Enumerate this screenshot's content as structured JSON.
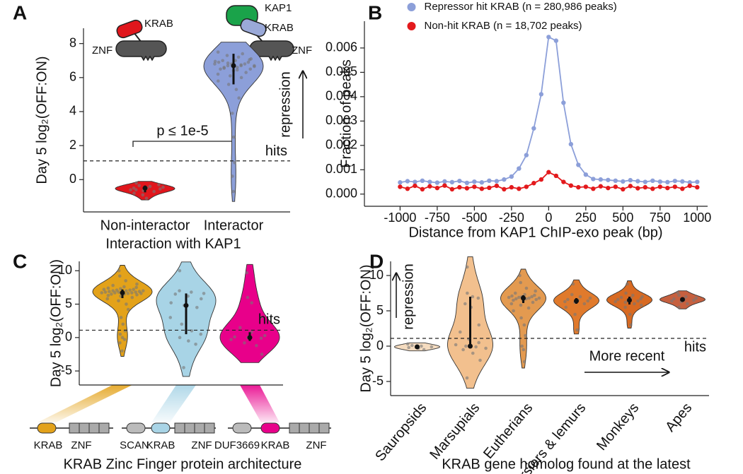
{
  "chart_data": [
    {
      "type": "violin",
      "panel": "A",
      "ylabel": "Day 5 log₂(OFF:ON)",
      "xlabel": "Interaction with KAP1",
      "categories": [
        "Non-interactor",
        "Interactor"
      ],
      "ylim": [
        -1.9,
        8.9
      ],
      "yticks": [
        0,
        2,
        4,
        6,
        8
      ],
      "threshold": 1.1,
      "threshold_label": "hits",
      "series": [
        {
          "color": "#e0161c",
          "median": -0.5,
          "q1": -0.75,
          "q3": -0.35,
          "points": [
            -0.2,
            -0.35,
            -0.4,
            -0.45,
            -0.5,
            -0.5,
            -0.55,
            -0.6,
            -0.65,
            -0.7,
            -0.8,
            -0.9,
            -1.1,
            -0.3,
            -0.6
          ]
        },
        {
          "color": "#8c9fd9",
          "median": 6.7,
          "q1": 5.6,
          "q3": 7.4,
          "points": [
            7.5,
            7.3,
            7.2,
            7.1,
            7.0,
            7.0,
            6.9,
            6.9,
            6.8,
            6.8,
            6.8,
            6.7,
            6.7,
            6.7,
            6.6,
            6.6,
            6.5,
            6.5,
            6.4,
            6.3,
            6.2,
            6.1,
            6.0,
            5.8,
            5.6,
            5.3,
            4.8,
            3.9,
            2.5,
            1.0,
            0.2,
            -0.7,
            7.4,
            6.95,
            6.85,
            6.75,
            6.65,
            6.55,
            6.45,
            7.05
          ]
        }
      ],
      "annotations": {
        "pvalue": "p ≤ 1e-5",
        "arrow_label": "repression"
      },
      "icon_labels": [
        "KRAB",
        "ZNF",
        "KAP1",
        "KRAB",
        "ZNF"
      ]
    },
    {
      "type": "line",
      "panel": "B",
      "ylabel": "Fraction of peaks",
      "xlabel": "Distance from KAP1 ChIP-exo peak (bp)",
      "x": [
        -1000,
        -950,
        -900,
        -850,
        -800,
        -750,
        -700,
        -650,
        -600,
        -550,
        -500,
        -450,
        -400,
        -350,
        -300,
        -250,
        -200,
        -150,
        -100,
        -50,
        0,
        50,
        100,
        150,
        200,
        250,
        300,
        350,
        400,
        450,
        500,
        550,
        600,
        650,
        700,
        750,
        800,
        850,
        900,
        950,
        1000
      ],
      "series": [
        {
          "name": "Repressor hit KRAB (n = 280,986 peaks)",
          "color": "#8c9fd9",
          "values": [
            0.00048,
            0.00053,
            0.0005,
            0.00055,
            0.0005,
            0.00047,
            0.00052,
            0.00049,
            0.00054,
            0.00046,
            0.00051,
            0.00048,
            0.00055,
            0.00053,
            0.0006,
            0.00072,
            0.00105,
            0.0016,
            0.0027,
            0.0041,
            0.00645,
            0.0063,
            0.00375,
            0.00205,
            0.0012,
            0.0008,
            0.00062,
            0.0006,
            0.00058,
            0.00055,
            0.00052,
            0.00057,
            0.00053,
            0.0005,
            0.00055,
            0.00051,
            0.00049,
            0.00054,
            0.00052,
            0.00048,
            0.0005
          ]
        },
        {
          "name": "Non-hit KRAB (n = 18,702 peaks)",
          "color": "#e3191c",
          "values": [
            0.0003,
            0.00022,
            0.00034,
            0.0002,
            0.00032,
            0.00025,
            0.00035,
            0.0002,
            0.00028,
            0.00024,
            0.0003,
            0.00022,
            0.00026,
            0.00034,
            0.0002,
            0.00028,
            0.00022,
            0.0003,
            0.00045,
            0.0006,
            0.0009,
            0.00075,
            0.0005,
            0.00035,
            0.00028,
            0.0003,
            0.00022,
            0.00032,
            0.00025,
            0.0003,
            0.0002,
            0.00033,
            0.00024,
            0.00028,
            0.00022,
            0.0003,
            0.00025,
            0.0003,
            0.00022,
            0.00034,
            0.00028
          ]
        }
      ],
      "xlim": [
        -1240,
        1070
      ],
      "xticks": [
        -1000,
        -750,
        -500,
        -250,
        0,
        250,
        500,
        750,
        1000
      ],
      "ylim": [
        -0.0005,
        0.0071
      ],
      "yticks": [
        {
          "value": 0,
          "label": "0.000"
        },
        {
          "value": 0.001,
          "label": "0.001"
        },
        {
          "value": 0.002,
          "label": "0.002"
        },
        {
          "value": 0.003,
          "label": "0.003"
        },
        {
          "value": 0.004,
          "label": "0.004"
        },
        {
          "value": 0.005,
          "label": "0.005"
        },
        {
          "value": 0.006,
          "label": "0.006"
        }
      ],
      "legend": "upper center"
    },
    {
      "type": "violin",
      "panel": "C",
      "ylabel": "Day 5 log₂(OFF:ON)",
      "xlabel": "KRAB Zinc Finger protein architecture",
      "architectures": [
        [
          "KRAB",
          "ZNF"
        ],
        [
          "SCAN",
          "KRAB",
          "ZNF"
        ],
        [
          "DUF3669",
          "KRAB",
          "ZNF"
        ]
      ],
      "ylim": [
        -7.1,
        11.4
      ],
      "yticks": [
        -5,
        0,
        5,
        10
      ],
      "threshold": 1.1,
      "threshold_label": "hits",
      "series": [
        {
          "color": "#e3a21a",
          "median": 6.7,
          "q1": 5.9,
          "q3": 7.2,
          "points": [
            10,
            9.2,
            8.5,
            8.0,
            7.8,
            7.6,
            7.5,
            7.4,
            7.3,
            7.2,
            7.2,
            7.1,
            7.1,
            7.0,
            7.0,
            7.0,
            6.9,
            6.9,
            6.9,
            6.8,
            6.8,
            6.8,
            6.7,
            6.7,
            6.7,
            6.6,
            6.6,
            6.5,
            6.5,
            6.4,
            6.3,
            6.2,
            6.0,
            5.8,
            5.5,
            5.0,
            4.2,
            3.0,
            2.0,
            1.0,
            0.5,
            0.0,
            -0.3,
            -0.8,
            -2.0
          ]
        },
        {
          "color": "#a8d4e6",
          "median": 4.8,
          "q1": 0.5,
          "q3": 6.6,
          "points": [
            10,
            7.0,
            6.8,
            6.6,
            6.5,
            6.2,
            5.8,
            5.2,
            4.8,
            4.5,
            3.0,
            2.0,
            1.0,
            0.5,
            0.0,
            -0.5,
            -1.0,
            -4.5
          ]
        },
        {
          "color": "#e8008a",
          "median": 0,
          "q1": -0.5,
          "q3": 0.8,
          "points": [
            9.7,
            6.0,
            5.2,
            3.0,
            1.5,
            0.8,
            0.3,
            0.1,
            0.0,
            -0.1,
            -0.3,
            -0.8,
            -1.2,
            -2.5
          ]
        }
      ]
    },
    {
      "type": "violin",
      "panel": "D",
      "ylabel": "Day 5 log₂(OFF:ON)",
      "xlabel": "KRAB gene homolog found at the latest",
      "categories": [
        "Sauropsids",
        "Marsupials",
        "Eutherians",
        "Tarsiers & lemurs",
        "Monkeys",
        "Apes"
      ],
      "ylim": [
        -7,
        12
      ],
      "yticks": [
        -5,
        0,
        5,
        10
      ],
      "threshold": 1.1,
      "threshold_label": "hits",
      "series": [
        {
          "color": "#f5dcc0",
          "median": -0.1,
          "q1": -0.3,
          "q3": 0.1,
          "points": [
            0.3,
            0.1,
            0.0,
            -0.1,
            -0.2,
            -0.3,
            -0.5
          ]
        },
        {
          "color": "#f2c08e",
          "median": 0,
          "q1": -0.3,
          "q3": 7.0,
          "points": [
            11.2,
            7.5,
            7.0,
            6.8,
            6.0,
            5.5,
            3.0,
            2.0,
            1.0,
            0.5,
            0.2,
            0.0,
            -0.1,
            -0.3,
            -0.5,
            -1.0,
            -2.0,
            -4.5
          ]
        },
        {
          "color": "#e39a50",
          "median": 6.8,
          "q1": 6.1,
          "q3": 7.2,
          "points": [
            10,
            9.0,
            8.2,
            7.8,
            7.5,
            7.3,
            7.2,
            7.1,
            7.0,
            7.0,
            6.9,
            6.9,
            6.8,
            6.8,
            6.7,
            6.7,
            6.6,
            6.5,
            6.4,
            6.2,
            6.0,
            5.8,
            5.4,
            5.0,
            4.0,
            3.0,
            1.5,
            0.0,
            -0.5,
            -2.2
          ]
        },
        {
          "color": "#e07a2c",
          "median": 6.4,
          "q1": 6.0,
          "q3": 6.8,
          "points": [
            8.8,
            7.3,
            7.0,
            6.8,
            6.6,
            6.5,
            6.4,
            6.3,
            6.2,
            6.0,
            5.5,
            4.5,
            2.3
          ]
        },
        {
          "color": "#d86a22",
          "median": 6.5,
          "q1": 5.9,
          "q3": 7.0,
          "points": [
            8.8,
            7.5,
            7.2,
            7.0,
            6.9,
            6.8,
            6.7,
            6.6,
            6.5,
            6.4,
            6.3,
            6.2,
            6.0,
            5.8,
            5.5,
            4.5,
            3.0
          ]
        },
        {
          "color": "#c6603f",
          "median": 6.6,
          "q1": 6.3,
          "q3": 6.9,
          "points": [
            7.6,
            7.2,
            7.0,
            6.8,
            6.7,
            6.6,
            6.5,
            6.4,
            6.3,
            6.0,
            5.5
          ]
        }
      ],
      "annotations": {
        "arrow_label": "repression",
        "more_recent": "More recent"
      }
    }
  ]
}
